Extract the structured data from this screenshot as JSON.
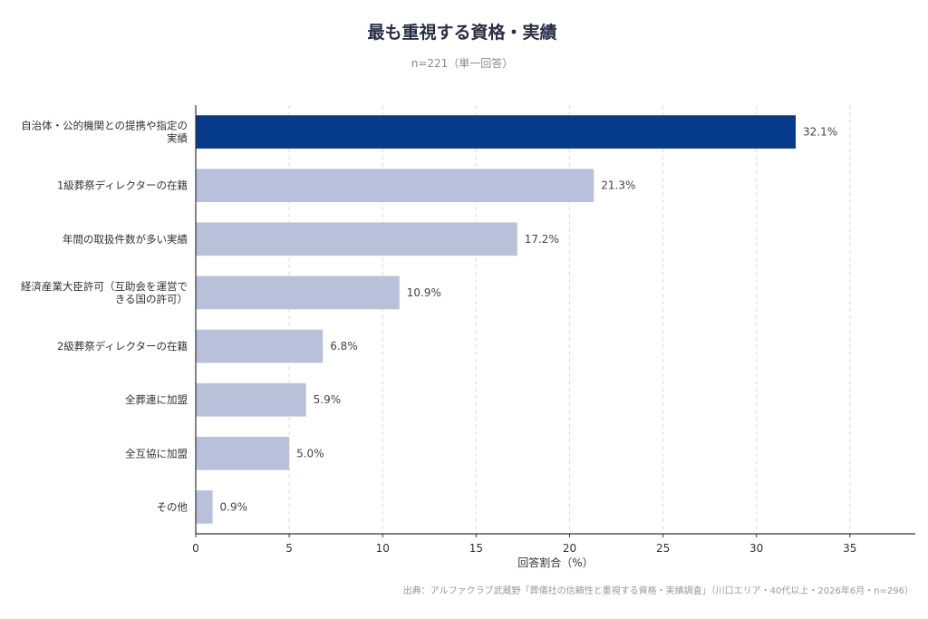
{
  "chart_data": {
    "type": "bar",
    "orientation": "horizontal",
    "title": "最も重視する資格・実績",
    "subtitle": "n=221（単一回答）",
    "xlabel": "回答割合（%）",
    "ylabel": "",
    "xlim": [
      0,
      38.5
    ],
    "xticks": [
      0,
      5,
      10,
      15,
      20,
      25,
      30,
      35
    ],
    "grid": "vertical dashed",
    "categories": [
      [
        "自治体・公的機関との提携や指定の",
        "実績"
      ],
      [
        "1級葬祭ディレクターの在籍"
      ],
      [
        "年間の取扱件数が多い実績"
      ],
      [
        "経済産業大臣許可（互助会を運営で",
        "きる国の許可）"
      ],
      [
        "2級葬祭ディレクターの在籍"
      ],
      [
        "全葬連に加盟"
      ],
      [
        "全互協に加盟"
      ],
      [
        "その他"
      ]
    ],
    "values": [
      32.1,
      21.3,
      17.2,
      10.9,
      6.8,
      5.9,
      5.0,
      0.9
    ],
    "value_labels": [
      "32.1%",
      "21.3%",
      "17.2%",
      "10.9%",
      "6.8%",
      "5.9%",
      "5.0%",
      "0.9%"
    ],
    "highlight_color": "#063a8a",
    "bar_color": "#b8c1d9",
    "source": "出典：アルファクラブ武蔵野「葬儀社の信頼性と重視する資格・実績調査」（川口エリア・40代以上・2026年6月・n=296）"
  }
}
